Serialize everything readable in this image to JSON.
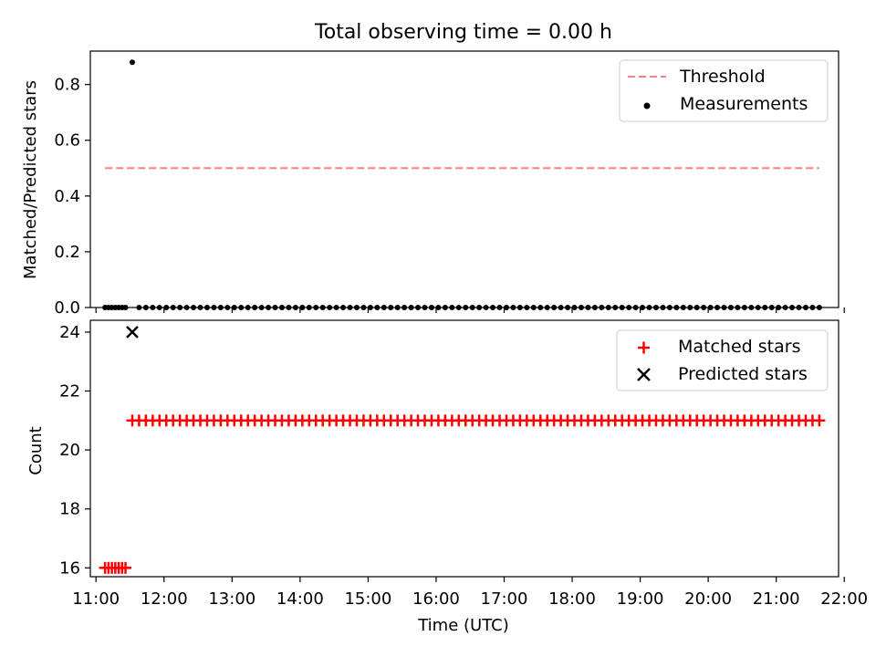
{
  "chart_data": [
    {
      "type": "scatter",
      "title": "Total observing time = 0.00 h",
      "ylabel": "Matched/Predicted stars",
      "xlabel": "",
      "ylim": [
        0,
        0.92
      ],
      "yticks": [
        0.0,
        0.2,
        0.4,
        0.6,
        0.8
      ],
      "ytick_labels": [
        "0.0",
        "0.2",
        "0.4",
        "0.6",
        "0.8"
      ],
      "legend_position": "top-right",
      "threshold": {
        "name": "Threshold",
        "value": 0.5,
        "x_start": "11:08",
        "x_end": "21:38",
        "color": "#ff7f7f",
        "style": "dashed"
      },
      "series": [
        {
          "name": "Measurements",
          "color": "#000000",
          "marker": "dot",
          "points": [
            {
              "x": "11:08",
              "y": 0.0
            },
            {
              "x": "11:11",
              "y": 0.0
            },
            {
              "x": "11:14",
              "y": 0.0
            },
            {
              "x": "11:17",
              "y": 0.0
            },
            {
              "x": "11:20",
              "y": 0.0
            },
            {
              "x": "11:23",
              "y": 0.0
            },
            {
              "x": "11:26",
              "y": 0.0
            },
            {
              "x": "11:32",
              "y": 0.88
            }
          ],
          "regular_run": {
            "start": "11:38",
            "end": "21:38",
            "step_minutes": 6,
            "y": 0.0
          }
        }
      ]
    },
    {
      "type": "scatter",
      "title": "",
      "ylabel": "Count",
      "xlabel": "Time (UTC)",
      "ylim": [
        15.7,
        24.4
      ],
      "yticks": [
        16,
        18,
        20,
        22,
        24
      ],
      "ytick_labels": [
        "16",
        "18",
        "20",
        "22",
        "24"
      ],
      "xlim": [
        "10:55",
        "21:55"
      ],
      "xticks": [
        "11:00",
        "12:00",
        "13:00",
        "14:00",
        "15:00",
        "16:00",
        "17:00",
        "18:00",
        "19:00",
        "20:00",
        "21:00",
        "22:00"
      ],
      "legend_position": "top-right",
      "series": [
        {
          "name": "Matched stars",
          "color": "#ff0000",
          "marker": "plus",
          "points": [
            {
              "x": "11:08",
              "y": 16
            },
            {
              "x": "11:11",
              "y": 16
            },
            {
              "x": "11:14",
              "y": 16
            },
            {
              "x": "11:17",
              "y": 16
            },
            {
              "x": "11:20",
              "y": 16
            },
            {
              "x": "11:23",
              "y": 16
            },
            {
              "x": "11:26",
              "y": 16
            }
          ],
          "regular_run": {
            "start": "11:32",
            "end": "21:38",
            "step_minutes": 6,
            "y": 21
          }
        },
        {
          "name": "Predicted stars",
          "color": "#000000",
          "marker": "x",
          "points": [
            {
              "x": "11:32",
              "y": 24
            }
          ]
        }
      ]
    }
  ]
}
